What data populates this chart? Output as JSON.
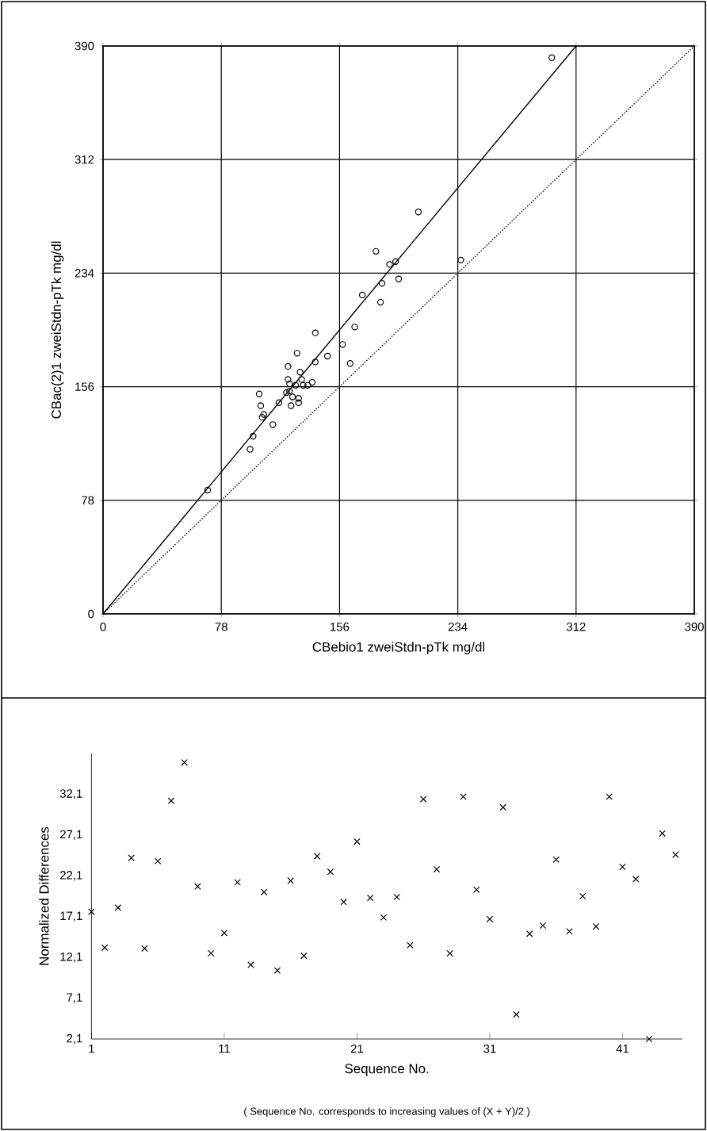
{
  "chart_data": [
    {
      "type": "scatter",
      "xlabel": "CBebio1 zweiStdn-pTk mg/dl",
      "ylabel": "CBac(2)1 zweiStdn-pTk mg/dl",
      "xlim": [
        0,
        390
      ],
      "ylim": [
        0,
        390
      ],
      "xticks": [
        0,
        78,
        156,
        234,
        312,
        390
      ],
      "yticks": [
        0,
        78,
        156,
        234,
        312,
        390
      ],
      "grid": true,
      "marker": "circle",
      "series": [
        {
          "type": "scatter",
          "color": "#000000",
          "marker": "circle",
          "x": [
            296,
            208,
            180,
            189,
            193,
            236,
            184,
            195,
            171,
            183,
            140,
            166,
            158,
            128,
            148,
            140,
            163,
            122,
            130,
            122,
            131,
            123,
            127,
            132,
            135,
            138,
            121,
            103,
            123,
            116,
            124,
            129,
            129,
            104,
            106,
            105,
            112,
            99,
            97,
            69,
            125
          ],
          "values": [
            382,
            276,
            249,
            240,
            242,
            243,
            227,
            230,
            219,
            214,
            193,
            197,
            185,
            179,
            177,
            173,
            172,
            170,
            166,
            161,
            161,
            158,
            157,
            157,
            157,
            159,
            152,
            151,
            153,
            145,
            143,
            148,
            145,
            143,
            137,
            135,
            130,
            122,
            113,
            85,
            149
          ]
        },
        {
          "type": "line",
          "color": "#000000",
          "line_style": "solid",
          "marker": "none",
          "x": [
            0,
            312
          ],
          "values": [
            0,
            390
          ]
        },
        {
          "type": "line",
          "color": "#000000",
          "line_style": "dotted",
          "marker": "none",
          "x": [
            0,
            390
          ],
          "values": [
            0,
            390
          ]
        }
      ]
    },
    {
      "type": "scatter",
      "xlabel": "Sequence No.",
      "ylabel": "Normalized Differences",
      "annotations": [
        "( Sequence No. corresponds to increasing values of (X + Y)/2 )"
      ],
      "xlim": [
        1,
        45.5
      ],
      "ylim": [
        2.1,
        37.1
      ],
      "xticks": [
        1,
        11,
        21,
        31,
        41
      ],
      "yticks": [
        {
          "value": 2.1,
          "label": "2,1"
        },
        {
          "value": 7.1,
          "label": "7,1"
        },
        {
          "value": 12.1,
          "label": "12,1"
        },
        {
          "value": 17.1,
          "label": "17,1"
        },
        {
          "value": 22.1,
          "label": "22,1"
        },
        {
          "value": 27.1,
          "label": "27,1"
        },
        {
          "value": 32.1,
          "label": "32,1"
        }
      ],
      "grid": false,
      "marker": "cross",
      "series": [
        {
          "color": "#000000",
          "x": [
            1,
            2,
            3,
            4,
            5,
            6,
            7,
            8,
            9,
            10,
            11,
            12,
            13,
            14,
            15,
            16,
            17,
            18,
            19,
            20,
            21,
            22,
            23,
            24,
            25,
            26,
            27,
            28,
            29,
            30,
            31,
            32,
            33,
            34,
            35,
            36,
            37,
            38,
            39,
            40,
            41,
            42,
            43,
            44,
            45
          ],
          "values": [
            17.7,
            13.3,
            18.2,
            24.3,
            13.2,
            23.9,
            31.3,
            36.0,
            20.8,
            12.6,
            15.1,
            21.3,
            11.2,
            20.1,
            10.5,
            21.5,
            12.3,
            24.5,
            22.6,
            18.9,
            26.3,
            19.4,
            17.0,
            19.5,
            13.6,
            31.5,
            22.9,
            12.6,
            31.8,
            20.4,
            16.8,
            30.5,
            5.1,
            15.0,
            16.0,
            24.1,
            15.3,
            19.6,
            15.9,
            31.8,
            23.2,
            21.7,
            2.1,
            27.3,
            24.7
          ]
        }
      ]
    }
  ]
}
